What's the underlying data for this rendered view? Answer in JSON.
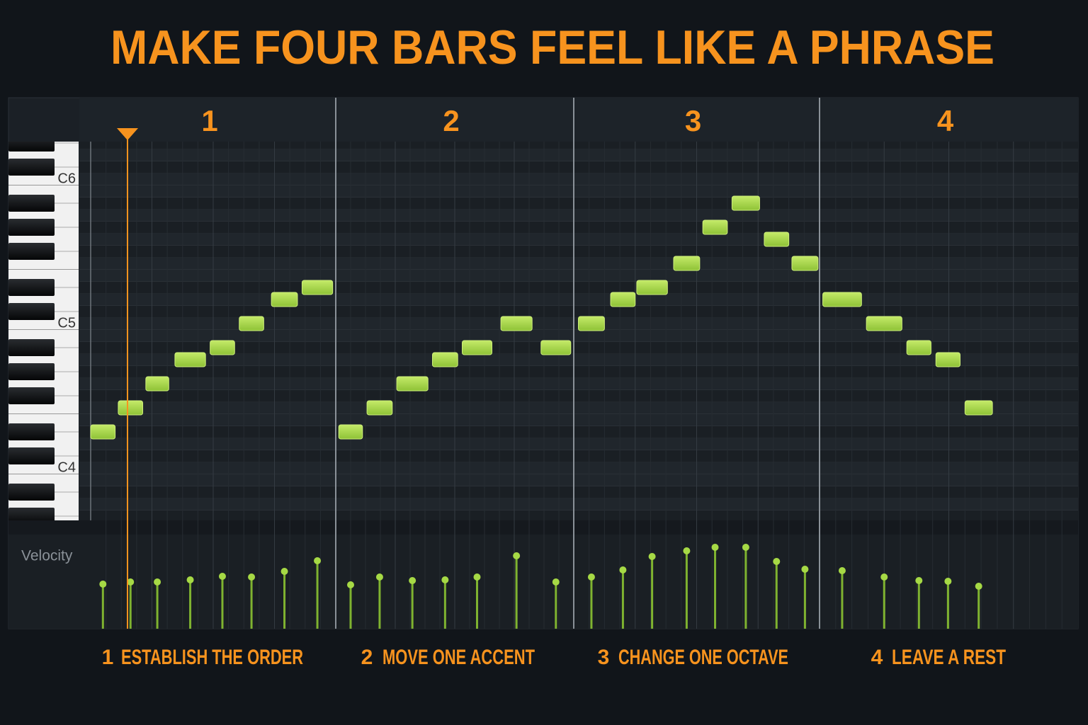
{
  "title": "MAKE FOUR BARS FEEL LIKE A PHRASE",
  "keyboard": {
    "labels": [
      {
        "text": "C6",
        "pitch": 84
      },
      {
        "text": "C5",
        "pitch": 72
      },
      {
        "text": "C4",
        "pitch": 60
      }
    ]
  },
  "velocity_lane": {
    "label": "Velocity"
  },
  "bars": [
    {
      "number": "1",
      "caption": "ESTABLISH THE ORDER",
      "notes": [
        {
          "start": 0,
          "length": 1.6,
          "pitch": 63,
          "velocity": 63
        },
        {
          "start": 1.8,
          "length": 1.6,
          "pitch": 65,
          "velocity": 66
        },
        {
          "start": 3.6,
          "length": 1.5,
          "pitch": 67,
          "velocity": 66
        },
        {
          "start": 5.5,
          "length": 2,
          "pitch": 69,
          "velocity": 69
        },
        {
          "start": 7.8,
          "length": 1.6,
          "pitch": 70,
          "velocity": 74
        },
        {
          "start": 9.7,
          "length": 1.6,
          "pitch": 72,
          "velocity": 73
        },
        {
          "start": 11.8,
          "length": 1.7,
          "pitch": 74,
          "velocity": 81
        },
        {
          "start": 13.8,
          "length": 2,
          "pitch": 75,
          "velocity": 96
        }
      ]
    },
    {
      "number": "2",
      "caption": "MOVE ONE ACCENT",
      "notes": [
        {
          "start": 0.2,
          "length": 1.6,
          "pitch": 63,
          "velocity": 62
        },
        {
          "start": 2.1,
          "length": 1.7,
          "pitch": 65,
          "velocity": 73
        },
        {
          "start": 4.1,
          "length": 2.1,
          "pitch": 67,
          "velocity": 68
        },
        {
          "start": 6.5,
          "length": 1.7,
          "pitch": 69,
          "velocity": 69
        },
        {
          "start": 8.5,
          "length": 2,
          "pitch": 70,
          "velocity": 73
        },
        {
          "start": 11.1,
          "length": 2.1,
          "pitch": 72,
          "velocity": 103
        },
        {
          "start": 13.8,
          "length": 2,
          "pitch": 70,
          "velocity": 66
        }
      ]
    },
    {
      "number": "3",
      "caption": "CHANGE ONE OCTAVE",
      "notes": [
        {
          "start": 0.3,
          "length": 1.7,
          "pitch": 72,
          "velocity": 73
        },
        {
          "start": 2.4,
          "length": 1.6,
          "pitch": 74,
          "velocity": 83
        },
        {
          "start": 4.1,
          "length": 2,
          "pitch": 75,
          "velocity": 102
        },
        {
          "start": 6.5,
          "length": 1.7,
          "pitch": 77,
          "velocity": 110
        },
        {
          "start": 8.4,
          "length": 1.6,
          "pitch": 80,
          "velocity": 115
        },
        {
          "start": 10.3,
          "length": 1.8,
          "pitch": 82,
          "velocity": 115
        },
        {
          "start": 12.4,
          "length": 1.6,
          "pitch": 79,
          "velocity": 95
        },
        {
          "start": 14.2,
          "length": 1.7,
          "pitch": 77,
          "velocity": 84
        }
      ]
    },
    {
      "number": "4",
      "caption": "LEAVE A REST",
      "notes": [
        {
          "start": 0.2,
          "length": 2.4,
          "pitch": 74,
          "velocity": 82
        },
        {
          "start": 2.9,
          "length": 2.2,
          "pitch": 72,
          "velocity": 73
        },
        {
          "start": 5.4,
          "length": 1.5,
          "pitch": 70,
          "velocity": 68
        },
        {
          "start": 7.2,
          "length": 1.5,
          "pitch": 69,
          "velocity": 67
        },
        {
          "start": 9,
          "length": 1.7,
          "pitch": 65,
          "velocity": 60
        }
      ]
    }
  ]
}
